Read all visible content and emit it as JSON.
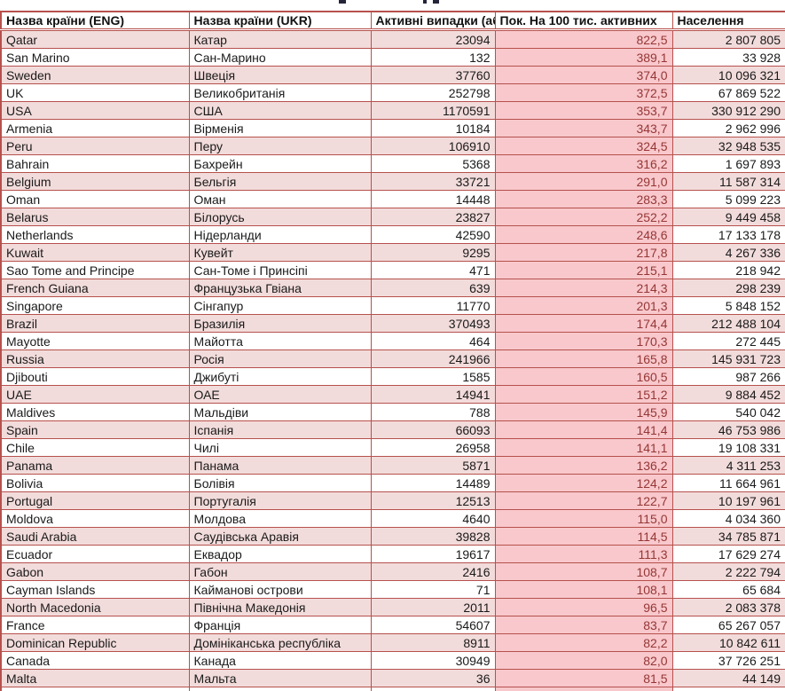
{
  "colors": {
    "border": "#b6514d",
    "row-alt": "#f2dcdb",
    "row-default": "#ffffff",
    "rate-bg": "#f8c8cc",
    "rate-text": "#953735",
    "text": "#1a1a1a"
  },
  "table": {
    "columns": [
      {
        "key": "name_eng",
        "label": "Назва країни (ENG)",
        "align": "left"
      },
      {
        "key": "name_ukr",
        "label": "Назва країни (UKR)",
        "align": "left"
      },
      {
        "key": "active_cases",
        "label": "Активні випадки (аб",
        "align": "right"
      },
      {
        "key": "per_100k",
        "label": "Пок. На 100 тис. активних",
        "align": "right"
      },
      {
        "key": "population",
        "label": "Населення",
        "align": "left"
      }
    ],
    "rows": [
      {
        "name_eng": "Qatar",
        "name_ukr": "Катар",
        "active_cases": "23094",
        "per_100k": "822,5",
        "population": "2 807 805"
      },
      {
        "name_eng": "San Marino",
        "name_ukr": "Сан-Марино",
        "active_cases": "132",
        "per_100k": "389,1",
        "population": "33 928"
      },
      {
        "name_eng": "Sweden",
        "name_ukr": "Швеція",
        "active_cases": "37760",
        "per_100k": "374,0",
        "population": "10 096 321"
      },
      {
        "name_eng": "UK",
        "name_ukr": "Великобританія",
        "active_cases": "252798",
        "per_100k": "372,5",
        "population": "67 869 522"
      },
      {
        "name_eng": "USA",
        "name_ukr": "США",
        "active_cases": "1170591",
        "per_100k": "353,7",
        "population": "330 912 290"
      },
      {
        "name_eng": "Armenia",
        "name_ukr": "Вірменія",
        "active_cases": "10184",
        "per_100k": "343,7",
        "population": "2 962 996"
      },
      {
        "name_eng": "Peru",
        "name_ukr": "Перу",
        "active_cases": "106910",
        "per_100k": "324,5",
        "population": "32 948 535"
      },
      {
        "name_eng": "Bahrain",
        "name_ukr": "Бахрейн",
        "active_cases": "5368",
        "per_100k": "316,2",
        "population": "1 697 893"
      },
      {
        "name_eng": "Belgium",
        "name_ukr": "Бельгія",
        "active_cases": "33721",
        "per_100k": "291,0",
        "population": "11 587 314"
      },
      {
        "name_eng": "Oman",
        "name_ukr": "Оман",
        "active_cases": "14448",
        "per_100k": "283,3",
        "population": "5 099 223"
      },
      {
        "name_eng": "Belarus",
        "name_ukr": "Білорусь",
        "active_cases": "23827",
        "per_100k": "252,2",
        "population": "9 449 458"
      },
      {
        "name_eng": "Netherlands",
        "name_ukr": "Нідерланди",
        "active_cases": "42590",
        "per_100k": "248,6",
        "population": "17 133 178"
      },
      {
        "name_eng": "Kuwait",
        "name_ukr": "Кувейт",
        "active_cases": "9295",
        "per_100k": "217,8",
        "population": "4 267 336"
      },
      {
        "name_eng": "Sao Tome and Principe",
        "name_ukr": "Сан-Томе і Принсіпі",
        "active_cases": "471",
        "per_100k": "215,1",
        "population": "218 942"
      },
      {
        "name_eng": "French Guiana",
        "name_ukr": "Французька Гвіана",
        "active_cases": "639",
        "per_100k": "214,3",
        "population": "298 239"
      },
      {
        "name_eng": "Singapore",
        "name_ukr": "Сінгапур",
        "active_cases": "11770",
        "per_100k": "201,3",
        "population": "5 848 152"
      },
      {
        "name_eng": "Brazil",
        "name_ukr": "Бразилія",
        "active_cases": "370493",
        "per_100k": "174,4",
        "population": "212 488 104"
      },
      {
        "name_eng": "Mayotte",
        "name_ukr": "Майотта",
        "active_cases": "464",
        "per_100k": "170,3",
        "population": "272 445"
      },
      {
        "name_eng": "Russia",
        "name_ukr": "Росія",
        "active_cases": "241966",
        "per_100k": "165,8",
        "population": "145 931 723"
      },
      {
        "name_eng": "Djibouti",
        "name_ukr": "Джибуті",
        "active_cases": "1585",
        "per_100k": "160,5",
        "population": "987 266"
      },
      {
        "name_eng": "UAE",
        "name_ukr": "ОАЕ",
        "active_cases": "14941",
        "per_100k": "151,2",
        "population": "9 884 452"
      },
      {
        "name_eng": "Maldives",
        "name_ukr": "Мальдіви",
        "active_cases": "788",
        "per_100k": "145,9",
        "population": "540 042"
      },
      {
        "name_eng": "Spain",
        "name_ukr": "Іспанія",
        "active_cases": "66093",
        "per_100k": "141,4",
        "population": "46 753 986"
      },
      {
        "name_eng": "Chile",
        "name_ukr": "Чилі",
        "active_cases": "26958",
        "per_100k": "141,1",
        "population": "19 108 331"
      },
      {
        "name_eng": "Panama",
        "name_ukr": "Панама",
        "active_cases": "5871",
        "per_100k": "136,2",
        "population": "4 311 253"
      },
      {
        "name_eng": "Bolivia",
        "name_ukr": "Болівія",
        "active_cases": "14489",
        "per_100k": "124,2",
        "population": "11 664 961"
      },
      {
        "name_eng": "Portugal",
        "name_ukr": "Португалія",
        "active_cases": "12513",
        "per_100k": "122,7",
        "population": "10 197 961"
      },
      {
        "name_eng": "Moldova",
        "name_ukr": "Молдова",
        "active_cases": "4640",
        "per_100k": "115,0",
        "population": "4 034 360"
      },
      {
        "name_eng": "Saudi Arabia",
        "name_ukr": "Саудівська Аравія",
        "active_cases": "39828",
        "per_100k": "114,5",
        "population": "34 785 871"
      },
      {
        "name_eng": "Ecuador",
        "name_ukr": "Еквадор",
        "active_cases": "19617",
        "per_100k": "111,3",
        "population": "17 629 274"
      },
      {
        "name_eng": "Gabon",
        "name_ukr": "Габон",
        "active_cases": "2416",
        "per_100k": "108,7",
        "population": "2 222 794"
      },
      {
        "name_eng": "Cayman Islands",
        "name_ukr": "Кайманові острови",
        "active_cases": "71",
        "per_100k": "108,1",
        "population": "65 684"
      },
      {
        "name_eng": "North Macedonia",
        "name_ukr": "Північна Македонія",
        "active_cases": "2011",
        "per_100k": "96,5",
        "population": "2 083 378"
      },
      {
        "name_eng": "France",
        "name_ukr": "Франція",
        "active_cases": "54607",
        "per_100k": "83,7",
        "population": "65 267 057"
      },
      {
        "name_eng": "Dominican Republic",
        "name_ukr": "Домініканська республіка",
        "active_cases": "8911",
        "per_100k": "82,2",
        "population": "10 842 611"
      },
      {
        "name_eng": "Canada",
        "name_ukr": "Канада",
        "active_cases": "30949",
        "per_100k": "82,0",
        "population": "37 726 251"
      },
      {
        "name_eng": "Malta",
        "name_ukr": "Мальта",
        "active_cases": "36",
        "per_100k": "81,5",
        "population": "44 149"
      }
    ]
  }
}
